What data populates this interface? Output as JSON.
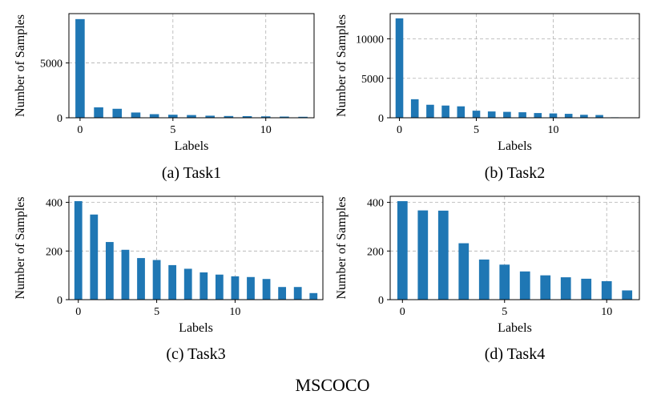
{
  "figure_title": "MSCOCO",
  "colors": {
    "bar": "#1f77b4",
    "grid": "#b0b0b0",
    "axis": "#000000"
  },
  "chart_data": [
    {
      "type": "bar",
      "caption": "(a) Task1",
      "xlabel": "Labels",
      "ylabel": "Number of Samples",
      "grid": true,
      "xlim": [
        -0.6,
        12.6
      ],
      "ylim": [
        0,
        9500
      ],
      "xticks": [
        0,
        5,
        10
      ],
      "yticks": [
        0,
        5000
      ],
      "x": [
        0,
        1,
        2,
        3,
        4,
        5,
        6,
        7,
        8,
        9,
        10,
        11,
        12
      ],
      "values": [
        9000,
        950,
        820,
        480,
        330,
        280,
        250,
        190,
        160,
        150,
        130,
        110,
        90
      ]
    },
    {
      "type": "bar",
      "caption": "(b) Task2",
      "xlabel": "Labels",
      "ylabel": "Number of Samples",
      "grid": true,
      "xlim": [
        -0.6,
        15.6
      ],
      "ylim": [
        0,
        13200
      ],
      "xticks": [
        0,
        5,
        10
      ],
      "yticks": [
        0,
        5000,
        10000
      ],
      "x": [
        0,
        1,
        2,
        3,
        4,
        5,
        6,
        7,
        8,
        9,
        10,
        11,
        12,
        13,
        14,
        15
      ],
      "values": [
        12600,
        2350,
        1650,
        1550,
        1450,
        900,
        800,
        750,
        700,
        600,
        550,
        500,
        380,
        350,
        60,
        40
      ]
    },
    {
      "type": "bar",
      "caption": "(c) Task3",
      "xlabel": "Labels",
      "ylabel": "Number of Samples",
      "grid": true,
      "xlim": [
        -0.6,
        15.6
      ],
      "ylim": [
        0,
        425
      ],
      "xticks": [
        0,
        5,
        10
      ],
      "yticks": [
        0,
        200,
        400
      ],
      "x": [
        0,
        1,
        2,
        3,
        4,
        5,
        6,
        7,
        8,
        9,
        10,
        11,
        12,
        13,
        14,
        15
      ],
      "values": [
        405,
        350,
        237,
        205,
        171,
        163,
        142,
        127,
        112,
        103,
        96,
        93,
        85,
        52,
        52,
        27
      ]
    },
    {
      "type": "bar",
      "caption": "(d) Task4",
      "xlabel": "Labels",
      "ylabel": "Number of Samples",
      "grid": true,
      "xlim": [
        -0.6,
        11.6
      ],
      "ylim": [
        0,
        425
      ],
      "xticks": [
        0,
        5,
        10
      ],
      "yticks": [
        0,
        200,
        400
      ],
      "x": [
        0,
        1,
        2,
        3,
        4,
        5,
        6,
        7,
        8,
        9,
        10,
        11
      ],
      "values": [
        405,
        367,
        366,
        232,
        165,
        144,
        116,
        100,
        92,
        86,
        76,
        38
      ]
    }
  ]
}
